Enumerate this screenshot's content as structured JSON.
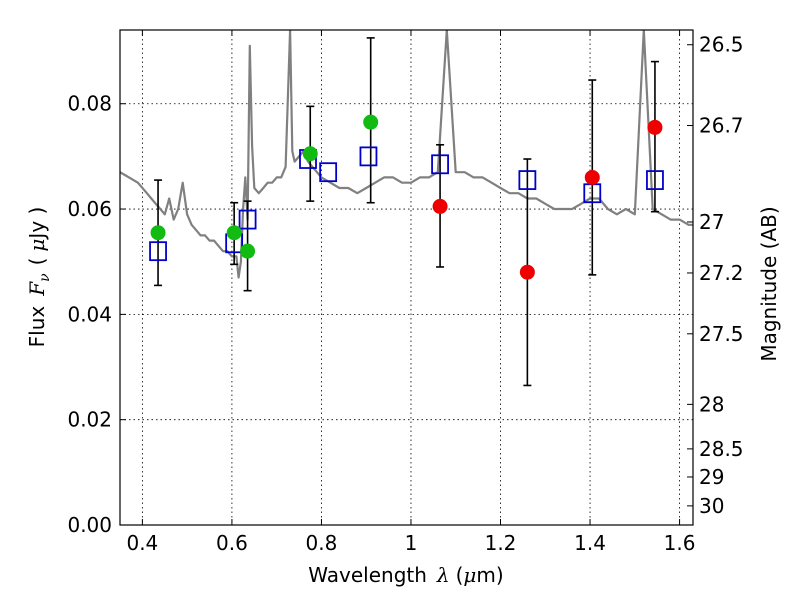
{
  "chart_data": {
    "type": "scatter",
    "title": "",
    "xlabel": "Wavelength",
    "xlabel_symbol": "λ",
    "xlabel_unit_open": "(",
    "xlabel_unit_mu": "μ",
    "xlabel_unit_rest": "m)",
    "ylabel": "Flux",
    "ylabel_symbol": "F",
    "ylabel_sub": "ν",
    "ylabel_unit_open": "(",
    "ylabel_unit_mu": "μ",
    "ylabel_unit_rest": "Jy )",
    "ylabel_right": "Magnitude (AB)",
    "xlim": [
      0.35,
      1.63
    ],
    "ylim": [
      0.0,
      0.094
    ],
    "grid": true,
    "xticks": [
      0.4,
      0.6,
      0.8,
      1.0,
      1.2,
      1.4,
      1.6
    ],
    "xtick_labels": [
      "0.4",
      "0.6",
      "0.8",
      "1",
      "1.2",
      "1.4",
      "1.6"
    ],
    "yticks": [
      0.0,
      0.02,
      0.04,
      0.06,
      0.08
    ],
    "ytick_labels": [
      "0.00",
      "0.02",
      "0.04",
      "0.06",
      "0.08"
    ],
    "right_ticks": [
      {
        "label": "26.5",
        "mag": 26.5
      },
      {
        "label": "26.7",
        "mag": 26.7
      },
      {
        "label": "27",
        "mag": 27.0
      },
      {
        "label": "27.2",
        "mag": 27.2
      },
      {
        "label": "27.5",
        "mag": 27.5
      },
      {
        "label": "28",
        "mag": 28.0
      },
      {
        "label": "28.5",
        "mag": 28.5
      },
      {
        "label": "29",
        "mag": 29.0
      },
      {
        "label": "30",
        "mag": 30.0
      }
    ],
    "colors": {
      "template": "#808080",
      "model": "#0000cc",
      "green": "#11bb11",
      "red": "#ee0000",
      "errorbar": "#000000"
    },
    "template_spectrum": {
      "x": [
        0.35,
        0.37,
        0.39,
        0.41,
        0.42,
        0.43,
        0.44,
        0.45,
        0.46,
        0.47,
        0.48,
        0.49,
        0.5,
        0.51,
        0.52,
        0.53,
        0.54,
        0.55,
        0.56,
        0.57,
        0.58,
        0.59,
        0.6,
        0.61,
        0.615,
        0.62,
        0.625,
        0.63,
        0.635,
        0.64,
        0.645,
        0.65,
        0.66,
        0.67,
        0.68,
        0.69,
        0.7,
        0.71,
        0.72,
        0.73,
        0.735,
        0.74,
        0.75,
        0.76,
        0.77,
        0.78,
        0.79,
        0.8,
        0.82,
        0.84,
        0.86,
        0.88,
        0.9,
        0.92,
        0.94,
        0.96,
        0.98,
        1.0,
        1.02,
        1.04,
        1.06,
        1.08,
        1.1,
        1.12,
        1.14,
        1.16,
        1.18,
        1.2,
        1.22,
        1.24,
        1.26,
        1.28,
        1.3,
        1.32,
        1.34,
        1.36,
        1.38,
        1.4,
        1.42,
        1.44,
        1.46,
        1.48,
        1.5,
        1.52,
        1.54,
        1.56,
        1.58,
        1.6,
        1.62,
        1.63
      ],
      "y": [
        0.067,
        0.066,
        0.065,
        0.063,
        0.062,
        0.061,
        0.06,
        0.059,
        0.062,
        0.058,
        0.06,
        0.065,
        0.059,
        0.057,
        0.056,
        0.055,
        0.055,
        0.054,
        0.054,
        0.053,
        0.052,
        0.052,
        0.051,
        0.051,
        0.047,
        0.05,
        0.06,
        0.066,
        0.058,
        0.091,
        0.072,
        0.064,
        0.063,
        0.064,
        0.065,
        0.065,
        0.066,
        0.066,
        0.068,
        0.094,
        0.071,
        0.069,
        0.07,
        0.071,
        0.069,
        0.068,
        0.067,
        0.066,
        0.065,
        0.064,
        0.064,
        0.063,
        0.064,
        0.065,
        0.066,
        0.066,
        0.065,
        0.065,
        0.066,
        0.066,
        0.067,
        0.094,
        0.067,
        0.067,
        0.066,
        0.066,
        0.065,
        0.064,
        0.063,
        0.063,
        0.062,
        0.062,
        0.061,
        0.06,
        0.06,
        0.06,
        0.061,
        0.062,
        0.062,
        0.06,
        0.059,
        0.06,
        0.059,
        0.094,
        0.06,
        0.059,
        0.058,
        0.058,
        0.057,
        0.057
      ]
    },
    "series": [
      {
        "marker": "square-open",
        "x": [
          0.435,
          0.605,
          0.635,
          0.77,
          0.815,
          0.905,
          1.065,
          1.26,
          1.405,
          1.545
        ],
        "y": [
          0.052,
          0.0535,
          0.058,
          0.0695,
          0.067,
          0.07,
          0.0685,
          0.0655,
          0.063,
          0.0655
        ]
      },
      {
        "marker": "circle-filled",
        "x": [
          0.435,
          0.605,
          0.635,
          0.775,
          0.91
        ],
        "y": [
          0.0555,
          0.0555,
          0.052,
          0.0705,
          0.0765
        ],
        "yerr_low": [
          0.0455,
          0.0495,
          0.0445,
          0.0615,
          0.0612
        ],
        "yerr_high": [
          0.0655,
          0.0612,
          0.0615,
          0.0795,
          0.0925
        ]
      },
      {
        "marker": "circle-filled",
        "x": [
          1.065,
          1.26,
          1.405,
          1.545
        ],
        "y": [
          0.0605,
          0.048,
          0.066,
          0.0755
        ],
        "yerr_low": [
          0.049,
          0.0265,
          0.0475,
          0.0595
        ],
        "yerr_high": [
          0.0722,
          0.0695,
          0.0845,
          0.088
        ]
      }
    ]
  }
}
